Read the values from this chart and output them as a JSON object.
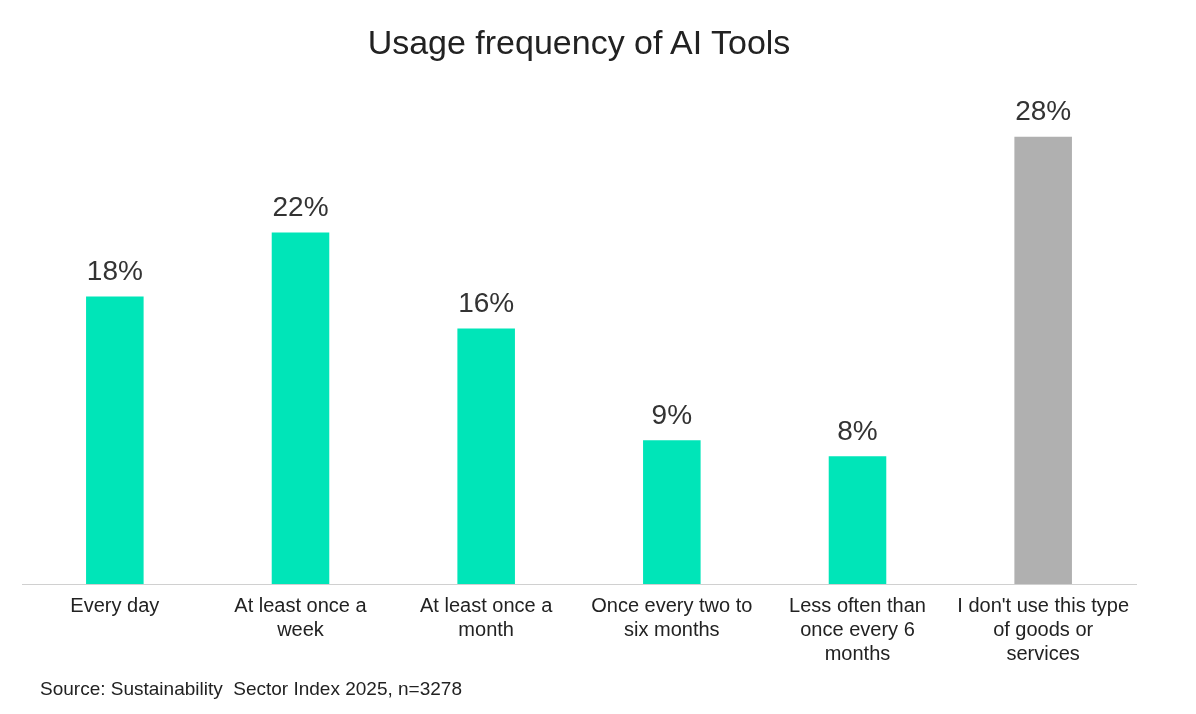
{
  "chart_data": {
    "type": "bar",
    "title": "Usage frequency of AI Tools",
    "categories": [
      "Every day",
      "At least once a week",
      "At least once a month",
      "Once every two to six months",
      "Less often than once every 6 months",
      "I don't use this type of goods or services"
    ],
    "values": [
      18,
      22,
      16,
      9,
      8,
      28
    ],
    "colors": [
      "#00e5b8",
      "#00e5b8",
      "#00e5b8",
      "#00e5b8",
      "#00e5b8",
      "#b0b0b0"
    ],
    "value_labels": [
      "18%",
      "22%",
      "16%",
      "9%",
      "8%",
      "28%"
    ],
    "annotations": [
      "Source: Sustainability  Sector Index 2025, n=3278"
    ],
    "grid": false,
    "legend": false
  }
}
